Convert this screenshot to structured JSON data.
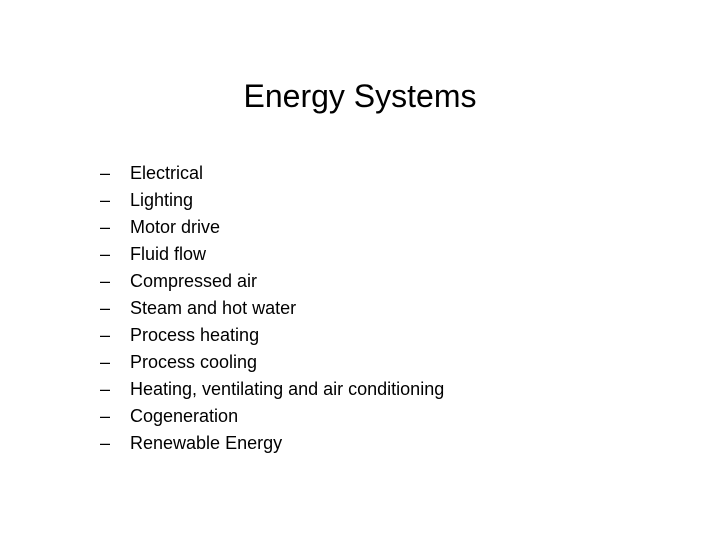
{
  "title": "Energy Systems",
  "bullet_char": "–",
  "items": [
    "Electrical",
    "Lighting",
    "Motor drive",
    "Fluid flow",
    "Compressed air",
    "Steam and hot water",
    "Process heating",
    "Process cooling",
    "Heating, ventilating and air conditioning",
    "Cogeneration",
    "Renewable Energy"
  ],
  "style": {
    "background_color": "#ffffff",
    "text_color": "#000000",
    "title_fontsize": 32,
    "body_fontsize": 18,
    "font_family": "Arial"
  }
}
